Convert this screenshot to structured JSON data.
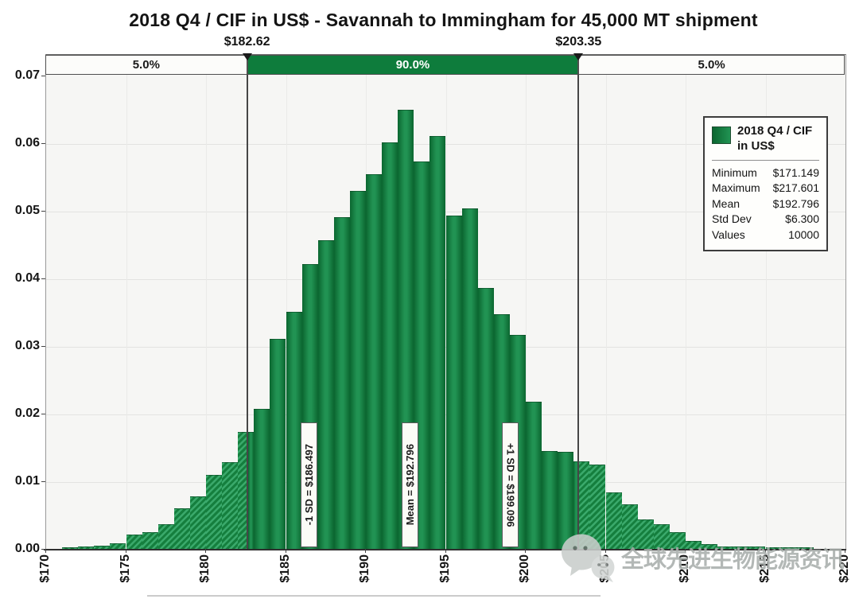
{
  "title": "2018 Q4 / CIF in US$ - Savannah to Immingham for 45,000 MT shipment",
  "band": {
    "low": 182.62,
    "high": 203.35,
    "low_label": "$182.62",
    "high_label": "$203.35",
    "left_pct": "5.0%",
    "mid_pct": "90.0%",
    "right_pct": "5.0%"
  },
  "legend": {
    "series_label": "2018 Q4 / CIF in US$",
    "stats": [
      {
        "label": "Minimum",
        "value": "$171.149"
      },
      {
        "label": "Maximum",
        "value": "$217.601"
      },
      {
        "label": "Mean",
        "value": "$192.796"
      },
      {
        "label": "Std Dev",
        "value": "$6.300"
      },
      {
        "label": "Values",
        "value": "10000"
      }
    ]
  },
  "markers": [
    {
      "label": "-1 SD = $186.497",
      "value": 186.497,
      "rotation": "ccw"
    },
    {
      "label": "Mean = $192.796",
      "value": 192.796,
      "rotation": "ccw"
    },
    {
      "label": "+1 SD = $199.096",
      "value": 199.096,
      "rotation": "cw"
    }
  ],
  "watermark": {
    "icon": "wechat-icon",
    "text": "全球先进生物能源资讯"
  },
  "chart_data": {
    "type": "bar",
    "subtype": "histogram",
    "title": "2018 Q4 / CIF in US$ - Savannah to Immingham for 45,000 MT shipment",
    "xlabel": "",
    "ylabel": "",
    "x_axis": {
      "min": 170,
      "max": 220,
      "tick_step": 5,
      "tick_labels": [
        "$170",
        "$175",
        "$180",
        "$185",
        "$190",
        "$195",
        "$200",
        "$205",
        "$210",
        "$215",
        "$220"
      ]
    },
    "y_axis": {
      "min": 0,
      "max": 0.07,
      "tick_step": 0.01,
      "tick_labels": [
        "0.00",
        "0.01",
        "0.02",
        "0.03",
        "0.04",
        "0.05",
        "0.06",
        "0.07"
      ]
    },
    "grid": true,
    "legend_position": "top-right",
    "bins": {
      "start": 170,
      "width": 1,
      "heights": [
        0.0,
        0.0002,
        0.0003,
        0.0005,
        0.0008,
        0.0021,
        0.0025,
        0.0037,
        0.006,
        0.0078,
        0.011,
        0.0128,
        0.0173,
        0.0207,
        0.031,
        0.0351,
        0.0421,
        0.0456,
        0.049,
        0.053,
        0.0554,
        0.0601,
        0.0649,
        0.0573,
        0.0611,
        0.0493,
        0.0503,
        0.0386,
        0.0347,
        0.0316,
        0.0218,
        0.0145,
        0.0143,
        0.013,
        0.0125,
        0.0084,
        0.0066,
        0.0044,
        0.0036,
        0.0025,
        0.0012,
        0.0007,
        0.0004,
        0.0003,
        0.0003,
        0.0002,
        0.0002,
        0.0002,
        0.0,
        0.0
      ]
    },
    "percentile_band": {
      "low": 182.62,
      "high": 203.35,
      "left": "5.0%",
      "middle": "90.0%",
      "right": "5.0%"
    },
    "annotations": [
      "-1 SD = $186.497",
      "Mean = $192.796",
      "+1 SD = $199.096"
    ],
    "colors": {
      "bar_edge": "#0b6630",
      "bar_center": "#219353",
      "hatch_light": "#3aa96b",
      "hatch_dark": "#157f3e",
      "band_green": "#0e7c3c",
      "plot_bg": "#f6f6f4"
    }
  }
}
